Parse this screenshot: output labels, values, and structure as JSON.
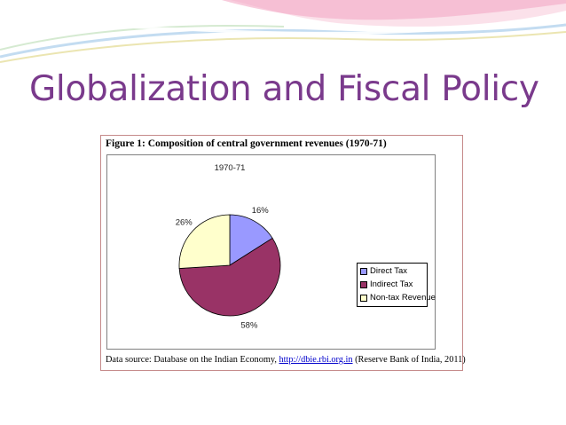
{
  "slide": {
    "title": "Globalization and Fiscal Policy"
  },
  "figure": {
    "caption": "Figure 1: Composition of central government revenues (1970-71)",
    "source": {
      "prefix": "Data source: Database on the Indian Economy,",
      "link": "http://dbie.rbi.org.in",
      "suffix": "(Reserve Bank of India, 2011)"
    }
  },
  "chart_data": {
    "type": "pie",
    "title": "1970-71",
    "labels": [
      "Direct Tax",
      "Indirect  Tax",
      "Non-tax Revenue"
    ],
    "values": [
      16,
      58,
      26
    ],
    "data_labels": [
      "16%",
      "58%",
      "26%"
    ],
    "colors": [
      "#9999ff",
      "#993366",
      "#ffffcc"
    ],
    "legend_position": "right"
  }
}
